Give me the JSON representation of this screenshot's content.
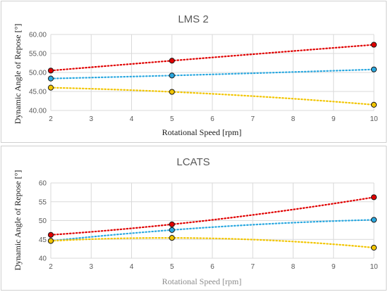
{
  "chart_data": [
    {
      "type": "scatter",
      "title": "LMS 2",
      "xlabel": "Rotational Speed [rpm]",
      "ylabel": "Dynamic Angle of Repose [°]",
      "xlim": [
        2,
        10
      ],
      "ylim": [
        40,
        60
      ],
      "x_ticks": [
        "2",
        "3",
        "4",
        "5",
        "6",
        "7",
        "8",
        "9",
        "10"
      ],
      "y_ticks": [
        "40.00",
        "45.00",
        "50.00",
        "55.00",
        "60.00"
      ],
      "grid": true,
      "trendlines": "dotted",
      "series": [
        {
          "color": "#e00000",
          "x": [
            2,
            5,
            10
          ],
          "y": [
            50.5,
            53.1,
            57.3
          ]
        },
        {
          "color": "#2aa8e0",
          "x": [
            2,
            5,
            10
          ],
          "y": [
            48.4,
            49.2,
            50.8
          ]
        },
        {
          "color": "#f2c500",
          "x": [
            2,
            5,
            10
          ],
          "y": [
            46.0,
            44.9,
            41.5
          ]
        }
      ]
    },
    {
      "type": "scatter",
      "title": "LCATS",
      "xlabel": "Rotational Speed [rpm]",
      "ylabel": "Dynamic Angle of Repose [°]",
      "xlim": [
        2,
        10
      ],
      "ylim": [
        40,
        60
      ],
      "x_ticks": [
        "2",
        "3",
        "4",
        "5",
        "6",
        "7",
        "8",
        "9",
        "10"
      ],
      "y_ticks": [
        "40",
        "45",
        "50",
        "55",
        "60"
      ],
      "grid": true,
      "trendlines": "dotted",
      "series": [
        {
          "color": "#e00000",
          "x": [
            2,
            5,
            10
          ],
          "y": [
            46.2,
            49.0,
            56.2
          ]
        },
        {
          "color": "#2aa8e0",
          "x": [
            2,
            5,
            10
          ],
          "y": [
            44.6,
            47.5,
            50.2
          ]
        },
        {
          "color": "#f2c500",
          "x": [
            2,
            5,
            10
          ],
          "y": [
            44.6,
            45.4,
            42.8
          ]
        }
      ]
    }
  ]
}
